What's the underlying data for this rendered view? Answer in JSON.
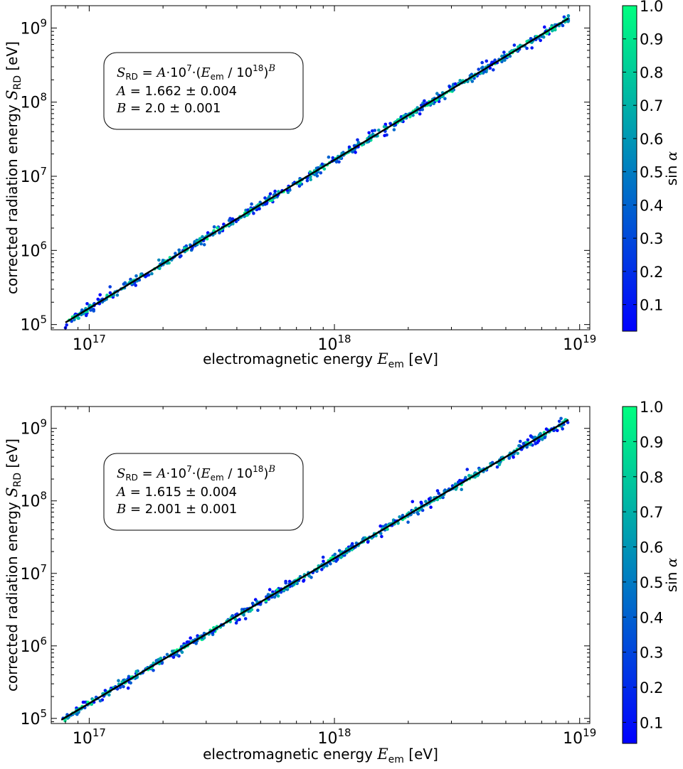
{
  "chart_data": [
    {
      "type": "scatter",
      "xlabel": "electromagnetic energy E_em [eV]",
      "xlabel_parts": {
        "pre": "electromagnetic energy ",
        "sym": "E",
        "sub": "em",
        "post": " [eV]"
      },
      "ylabel": "corrected radiation energy S_RD [eV]",
      "ylabel_parts": {
        "pre": "corrected radiation energy ",
        "sym": "S",
        "sub": "RD",
        "post": " [eV]"
      },
      "x_scale": "log",
      "y_scale": "log",
      "xlim": [
        7e+16,
        1.1e+19
      ],
      "ylim": [
        85000.0,
        2000000000.0
      ],
      "x_tick_exponents": [
        17,
        18,
        19
      ],
      "y_tick_exponents": [
        5,
        6,
        7,
        8,
        9
      ],
      "x_tick_labels": [
        "10^17",
        "10^18",
        "10^19"
      ],
      "y_tick_labels": [
        "10^5",
        "10^6",
        "10^7",
        "10^8",
        "10^9"
      ],
      "points_range": {
        "x_min": 8e+16,
        "x_max": 9e+18,
        "count": 700
      },
      "fit": {
        "formula": "S_RD = A·10^7·(E_em / 10^18)^B",
        "A": 1.662,
        "A_err": 0.004,
        "B": 2.0,
        "B_err": 0.001
      },
      "legend_lines": [
        "S_RD = A·10^7·(E_em / 10^18)^B",
        "A = 1.662 ± 0.004",
        "B = 2.0 ± 0.001"
      ],
      "annotation_placement": "top-left",
      "colorbar": {
        "label": "sin α",
        "range": [
          0.02,
          1.0
        ],
        "ticks": [
          0.1,
          0.2,
          0.3,
          0.4,
          0.5,
          0.6,
          0.7,
          0.8,
          0.9,
          1.0
        ],
        "tick_labels": [
          "0.1",
          "0.2",
          "0.3",
          "0.4",
          "0.5",
          "0.6",
          "0.7",
          "0.8",
          "0.9",
          "1.0"
        ],
        "colormap": "winter",
        "color_low": "#0000ff",
        "color_high": "#00ff80"
      },
      "line_color": "#000000",
      "grid": false
    },
    {
      "type": "scatter",
      "xlabel": "electromagnetic energy E_em [eV]",
      "xlabel_parts": {
        "pre": "electromagnetic energy ",
        "sym": "E",
        "sub": "em",
        "post": " [eV]"
      },
      "ylabel": "corrected radiation energy S_RD [eV]",
      "ylabel_parts": {
        "pre": "corrected radiation energy ",
        "sym": "S",
        "sub": "RD",
        "post": " [eV]"
      },
      "x_scale": "log",
      "y_scale": "log",
      "xlim": [
        7e+16,
        1.1e+19
      ],
      "ylim": [
        85000.0,
        2000000000.0
      ],
      "x_tick_exponents": [
        17,
        18,
        19
      ],
      "y_tick_exponents": [
        5,
        6,
        7,
        8,
        9
      ],
      "x_tick_labels": [
        "10^17",
        "10^18",
        "10^19"
      ],
      "y_tick_labels": [
        "10^5",
        "10^6",
        "10^7",
        "10^8",
        "10^9"
      ],
      "points_range": {
        "x_min": 7.7e+16,
        "x_max": 9e+18,
        "count": 700
      },
      "fit": {
        "formula": "S_RD = A·10^7·(E_em / 10^18)^B",
        "A": 1.615,
        "A_err": 0.004,
        "B": 2.001,
        "B_err": 0.001
      },
      "legend_lines": [
        "S_RD = A·10^7·(E_em / 10^18)^B",
        "A = 1.615 ± 0.004",
        "B = 2.001 ± 0.001"
      ],
      "annotation_placement": "top-left",
      "colorbar": {
        "label": "sin α",
        "range": [
          0.04,
          1.0
        ],
        "ticks": [
          0.1,
          0.2,
          0.3,
          0.4,
          0.5,
          0.6,
          0.7,
          0.8,
          0.9,
          1.0
        ],
        "tick_labels": [
          "0.1",
          "0.2",
          "0.3",
          "0.4",
          "0.5",
          "0.6",
          "0.7",
          "0.8",
          "0.9",
          "1.0"
        ],
        "colormap": "winter",
        "color_low": "#0000ff",
        "color_high": "#00ff80"
      },
      "line_color": "#000000",
      "grid": false
    }
  ]
}
